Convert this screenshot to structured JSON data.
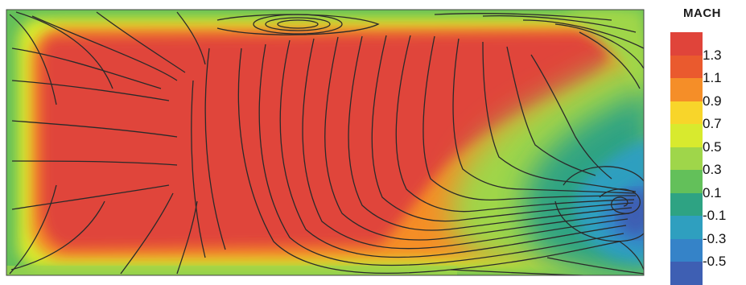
{
  "legend": {
    "title": "MACH",
    "entries": [
      {
        "label": "1.3"
      },
      {
        "label": "1.1"
      },
      {
        "label": "0.9"
      },
      {
        "label": "0.7"
      },
      {
        "label": "0.5"
      },
      {
        "label": "0.3"
      },
      {
        "label": "0.1"
      },
      {
        "label": "-0.1"
      },
      {
        "label": "-0.3"
      },
      {
        "label": "-0.5"
      }
    ],
    "colors": [
      "#e0443a",
      "#ea5a2e",
      "#f58e28",
      "#f8d52a",
      "#d8ea2e",
      "#9fd64a",
      "#63c05a",
      "#2ea383",
      "#2f9fbf",
      "#3583c8",
      "#3e5fb3"
    ]
  }
}
